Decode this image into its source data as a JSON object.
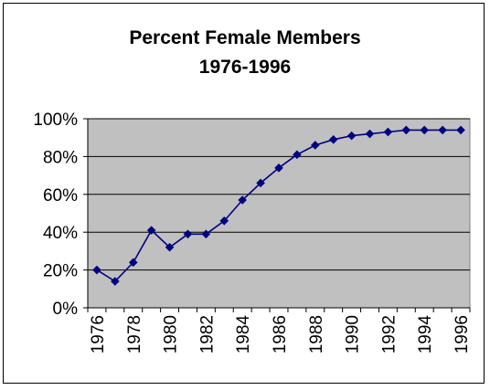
{
  "colors": {
    "plot_background": "#c0c0c0",
    "series_line": "#000080",
    "marker": "#000080",
    "gridline": "#000000"
  },
  "chart_data": {
    "type": "line",
    "title": "Percent Female Members",
    "subtitle": "1976-1996",
    "xlabel": "",
    "ylabel": "",
    "grid": true,
    "legend": "none",
    "ylim": [
      0,
      100
    ],
    "yticks": [
      "0%",
      "20%",
      "40%",
      "60%",
      "80%",
      "100%"
    ],
    "xticks": [
      "1976",
      "1978",
      "1980",
      "1982",
      "1984",
      "1986",
      "1988",
      "1990",
      "1992",
      "1994",
      "1996"
    ],
    "x": [
      1976,
      1977,
      1978,
      1979,
      1980,
      1981,
      1982,
      1983,
      1984,
      1985,
      1986,
      1987,
      1988,
      1989,
      1990,
      1991,
      1992,
      1993,
      1994,
      1995,
      1996
    ],
    "series": [
      {
        "values": [
          20,
          14,
          24,
          41,
          32,
          39,
          39,
          46,
          57,
          66,
          74,
          81,
          86,
          89,
          91,
          92,
          93,
          94,
          94,
          94,
          94
        ]
      }
    ]
  }
}
